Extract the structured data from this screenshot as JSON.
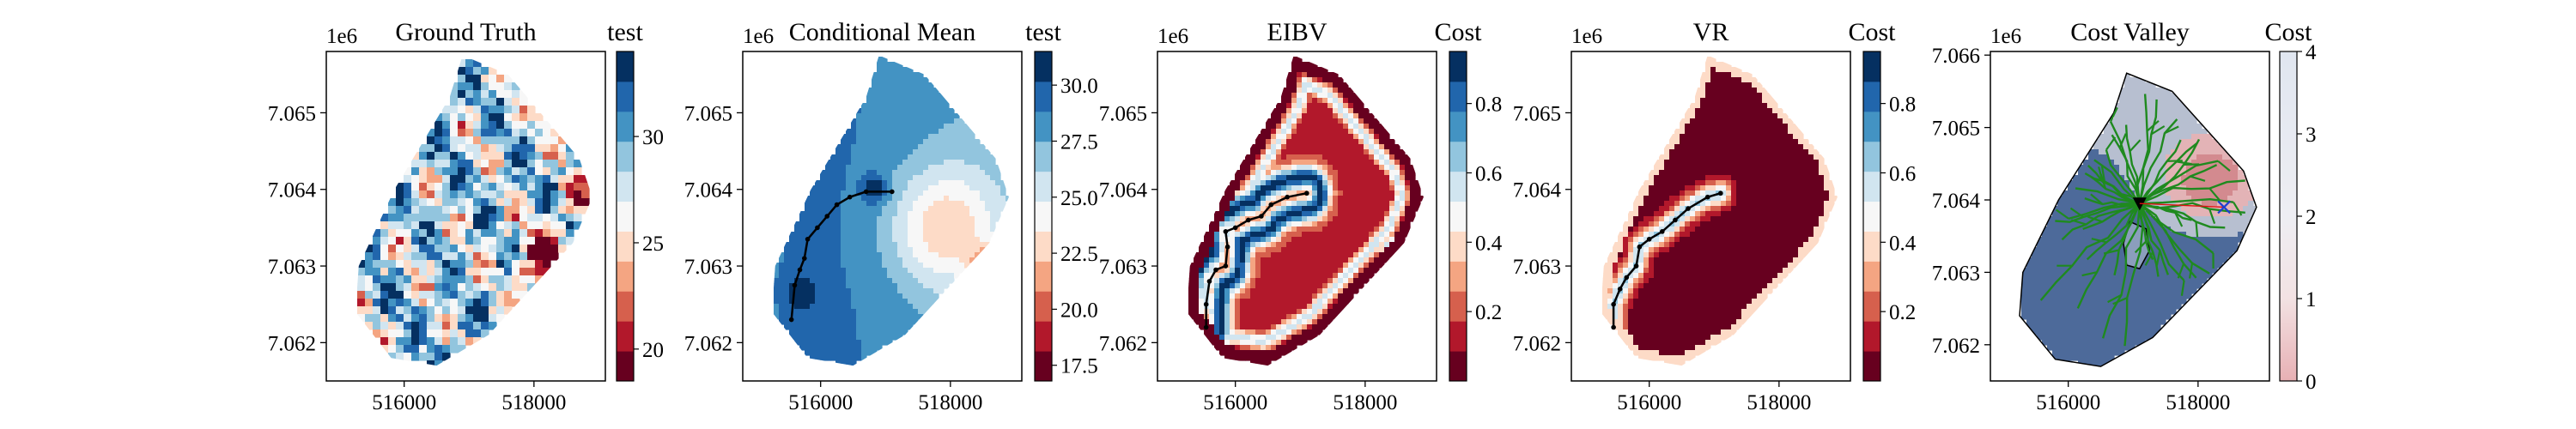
{
  "colors": {
    "rdbu": [
      "#67001f",
      "#b2182b",
      "#d6604d",
      "#f4a582",
      "#fddbc7",
      "#f7f7f7",
      "#d1e5f0",
      "#92c5de",
      "#4393c3",
      "#2166ac",
      "#053061"
    ],
    "path": "#000000",
    "tree": "#1f8a1f",
    "target": "#1f3fd1",
    "current": "#000000"
  },
  "chart_data": [
    {
      "type": "heatmap",
      "title": "Ground Truth",
      "x_ticks": [
        "516000",
        "518000"
      ],
      "y_ticks": [
        "7.065",
        "7.064",
        "7.063",
        "7.062"
      ],
      "y_multiplier": "1e6",
      "colorbar": {
        "title": "test",
        "ticks": [
          "30",
          "25",
          "20"
        ],
        "range": [
          18.5,
          34
        ],
        "cmap": "RdBu"
      }
    },
    {
      "type": "heatmap",
      "title": "Conditional Mean",
      "x_ticks": [
        "516000",
        "518000"
      ],
      "y_ticks": [
        "7.065",
        "7.064",
        "7.063",
        "7.062"
      ],
      "y_multiplier": "1e6",
      "path": [
        [
          515550,
          7062300
        ],
        [
          515600,
          7062750
        ],
        [
          515680,
          7062950
        ],
        [
          515750,
          7063100
        ],
        [
          515800,
          7063350
        ],
        [
          515950,
          7063500
        ],
        [
          516100,
          7063650
        ],
        [
          516250,
          7063800
        ],
        [
          516450,
          7063900
        ],
        [
          516700,
          7063970
        ],
        [
          517100,
          7063970
        ]
      ],
      "colorbar": {
        "title": "test",
        "ticks": [
          "30.0",
          "27.5",
          "25.0",
          "22.5",
          "20.0",
          "17.5"
        ],
        "range": [
          16.8,
          31.5
        ],
        "cmap": "RdBu"
      }
    },
    {
      "type": "heatmap",
      "title": "EIBV",
      "x_ticks": [
        "516000",
        "518000"
      ],
      "y_ticks": [
        "7.065",
        "7.064",
        "7.063",
        "7.062"
      ],
      "y_multiplier": "1e6",
      "path": [
        [
          515550,
          7062200
        ],
        [
          515550,
          7062500
        ],
        [
          515600,
          7062800
        ],
        [
          515700,
          7062950
        ],
        [
          515850,
          7063000
        ],
        [
          515880,
          7063250
        ],
        [
          515850,
          7063450
        ],
        [
          516000,
          7063500
        ],
        [
          516200,
          7063600
        ],
        [
          516400,
          7063650
        ],
        [
          516550,
          7063800
        ],
        [
          516800,
          7063900
        ],
        [
          517100,
          7063950
        ]
      ],
      "colorbar": {
        "title": "Cost",
        "ticks": [
          "0.8",
          "0.6",
          "0.4",
          "0.2"
        ],
        "range": [
          0,
          0.95
        ],
        "cmap": "RdBu"
      }
    },
    {
      "type": "heatmap",
      "title": "VR",
      "x_ticks": [
        "516000",
        "518000"
      ],
      "y_ticks": [
        "7.065",
        "7.064",
        "7.063",
        "7.062"
      ],
      "y_multiplier": "1e6",
      "path": [
        [
          515450,
          7062200
        ],
        [
          515450,
          7062500
        ],
        [
          515550,
          7062700
        ],
        [
          515650,
          7062850
        ],
        [
          515800,
          7063000
        ],
        [
          515850,
          7063250
        ],
        [
          516000,
          7063350
        ],
        [
          516200,
          7063450
        ],
        [
          516400,
          7063600
        ],
        [
          516600,
          7063750
        ],
        [
          516900,
          7063900
        ],
        [
          517100,
          7063950
        ]
      ],
      "colorbar": {
        "title": "Cost",
        "ticks": [
          "0.8",
          "0.6",
          "0.4",
          "0.2"
        ],
        "range": [
          0,
          0.95
        ],
        "cmap": "RdBu"
      }
    },
    {
      "type": "heatmap",
      "title": "Cost Valley",
      "x_ticks": [
        "516000",
        "518000"
      ],
      "y_ticks": [
        "7.066",
        "7.065",
        "7.064",
        "7.063",
        "7.062"
      ],
      "y_multiplier": "1e6",
      "current_location": [
        517100,
        7063950
      ],
      "target_location": [
        518400,
        7063900
      ],
      "colorbar": {
        "title": "Cost",
        "ticks": [
          "4",
          "3",
          "2",
          "1",
          "0"
        ],
        "range": [
          0,
          4
        ],
        "cmap": "RdBu"
      }
    }
  ]
}
